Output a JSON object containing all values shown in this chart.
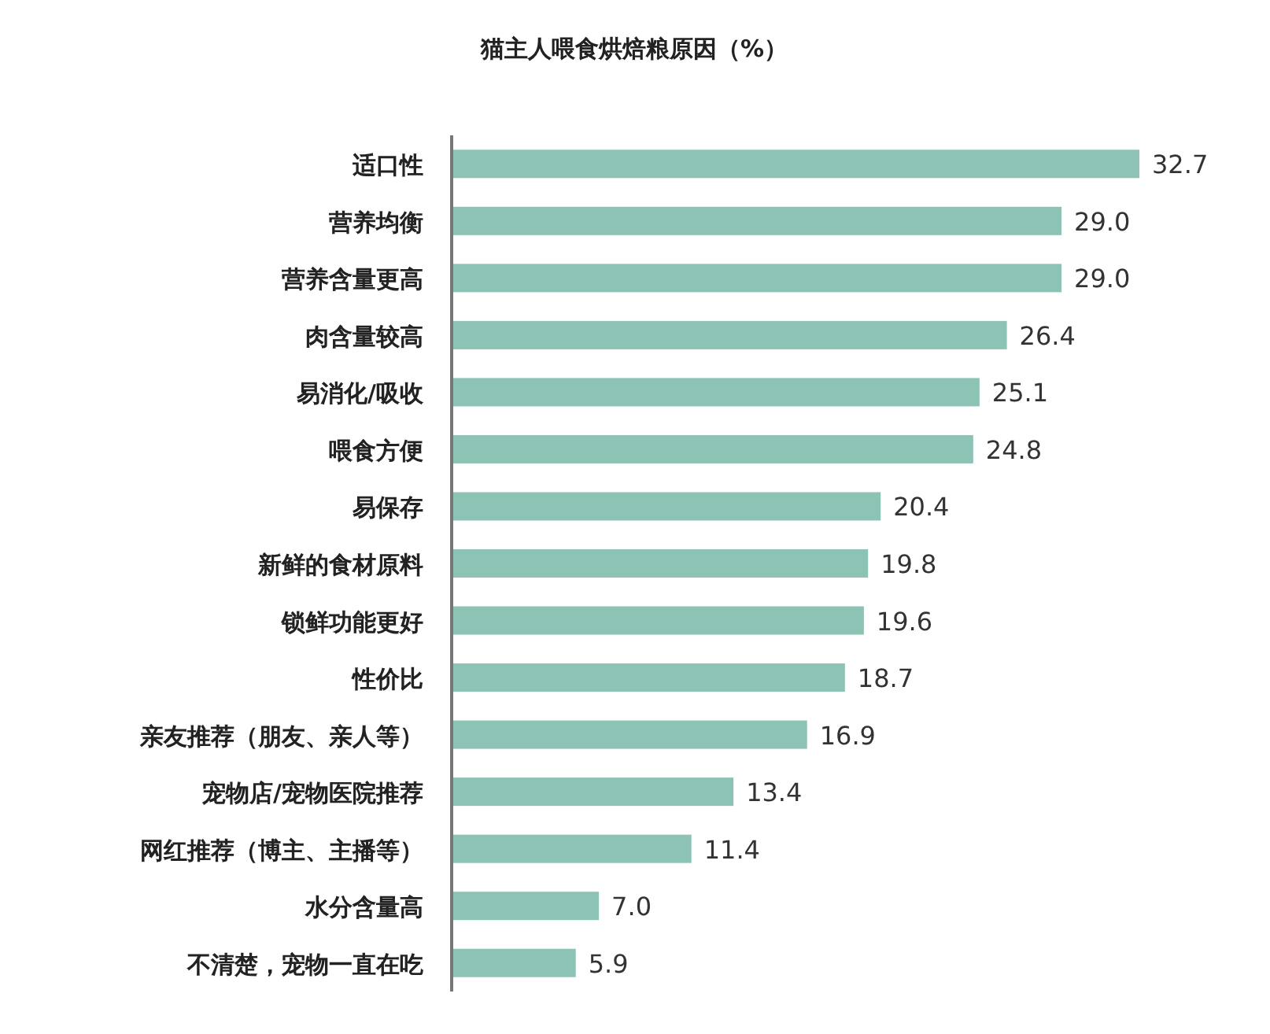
{
  "chart_data": {
    "type": "bar",
    "orientation": "horizontal",
    "title": "猫主人喂食烘焙粮原因（%）",
    "categories": [
      "适口性",
      "营养均衡",
      "营养含量更高",
      "肉含量较高",
      "易消化/吸收",
      "喂食方便",
      "易保存",
      "新鲜的食材原料",
      "锁鲜功能更好",
      "性价比",
      "亲友推荐（朋友、亲人等）",
      "宠物店/宠物医院推荐",
      "网红推荐（博主、主播等）",
      "水分含量高",
      "不清楚，宠物一直在吃"
    ],
    "values": [
      32.7,
      29.0,
      29.0,
      26.4,
      25.1,
      24.8,
      20.4,
      19.8,
      19.6,
      18.7,
      16.9,
      13.4,
      11.4,
      7.0,
      5.9
    ],
    "value_labels": [
      "32.7",
      "29.0",
      "29.0",
      "26.4",
      "25.1",
      "24.8",
      "20.4",
      "19.8",
      "19.6",
      "18.7",
      "16.9",
      "13.4",
      "11.4",
      "7.0",
      "5.9"
    ],
    "color": "#8cc3b5"
  }
}
